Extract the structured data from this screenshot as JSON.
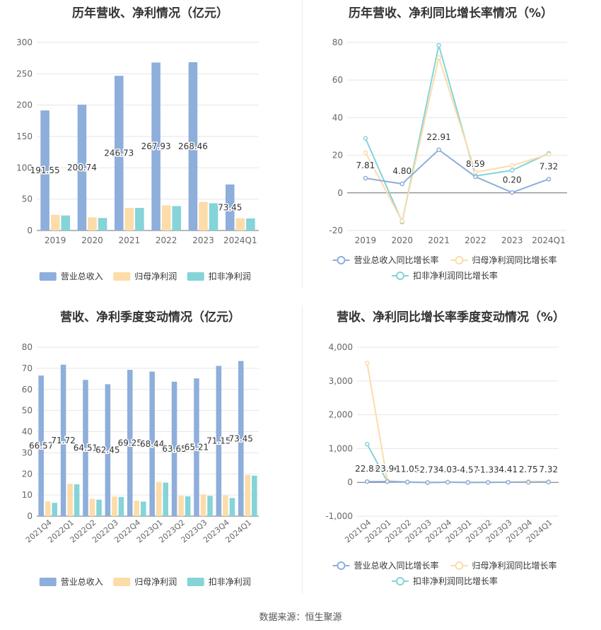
{
  "panels": [
    {
      "title": "历年营收、净利情况（亿元）",
      "chart_data": {
        "type": "bar",
        "categories": [
          "2019",
          "2020",
          "2021",
          "2022",
          "2023",
          "2024Q1"
        ],
        "series": [
          {
            "name": "营业总收入",
            "color": "#8eaedb",
            "values": [
              191.55,
              200.74,
              246.73,
              267.93,
              268.46,
              73.45
            ],
            "labels": [
              "191.55",
              "200.74",
              "246.73",
              "267.93",
              "268.46",
              "73.45"
            ]
          },
          {
            "name": "归母净利润",
            "color": "#fcdca8",
            "values": [
              25,
              21,
              36,
              40,
              45.5,
              19.5
            ]
          },
          {
            "name": "扣非净利润",
            "color": "#84d4d8",
            "values": [
              24,
              20,
              36,
              39,
              43.5,
              19.2
            ]
          }
        ],
        "ylim": [
          0,
          300
        ],
        "yticks": [
          0,
          50,
          100,
          150,
          200,
          250,
          300
        ]
      }
    },
    {
      "title": "历年营收、净利同比增长率情况（%）",
      "chart_data": {
        "type": "line",
        "categories": [
          "2019",
          "2020",
          "2021",
          "2022",
          "2023",
          "2024Q1"
        ],
        "series": [
          {
            "name": "营业总收入同比增长率",
            "color": "#8eaedb",
            "values": [
              7.81,
              4.8,
              22.91,
              8.59,
              0.2,
              7.32
            ],
            "labels": [
              "7.81",
              "4.80",
              "22.91",
              "8.59",
              "0.20",
              "7.32"
            ]
          },
          {
            "name": "归母净利润同比增长率",
            "color": "#fcdca8",
            "values": [
              21.5,
              -15,
              72,
              11,
              14.5,
              20.5
            ]
          },
          {
            "name": "扣非净利润同比增长率",
            "color": "#84d4d8",
            "values": [
              29,
              -15.5,
              78.5,
              9,
              12,
              21
            ]
          }
        ],
        "ylim": [
          -20,
          80
        ],
        "yticks": [
          -20,
          0,
          20,
          40,
          60,
          80
        ]
      }
    },
    {
      "title": "营收、净利季度变动情况（亿元）",
      "chart_data": {
        "type": "bar",
        "categories": [
          "2021Q4",
          "2022Q1",
          "2022Q2",
          "2022Q3",
          "2022Q4",
          "2023Q1",
          "2023Q2",
          "2023Q3",
          "2023Q4",
          "2024Q1"
        ],
        "series": [
          {
            "name": "营业总收入",
            "color": "#8eaedb",
            "values": [
              66.57,
              71.72,
              64.51,
              62.45,
              69.25,
              68.44,
              63.65,
              65.21,
              71.15,
              73.45
            ],
            "labels": [
              "66.57",
              "71.72",
              "64.51",
              "62.45",
              "69.25",
              "68.44",
              "63.65",
              "65.21",
              "71.15",
              "73.45"
            ]
          },
          {
            "name": "归母净利润",
            "color": "#fcdca8",
            "values": [
              7,
              15.3,
              8.2,
              9.3,
              7.3,
              16.2,
              9.6,
              10.3,
              9.8,
              19.5
            ]
          },
          {
            "name": "扣非净利润",
            "color": "#84d4d8",
            "values": [
              6.3,
              15.1,
              7.8,
              9.1,
              6.9,
              15.9,
              9.4,
              9.6,
              8.6,
              19.2
            ]
          }
        ],
        "ylim": [
          0,
          80
        ],
        "yticks": [
          0,
          10,
          20,
          30,
          40,
          50,
          60,
          70,
          80
        ]
      }
    },
    {
      "title": "营收、净利同比增长率季度变动情况（%）",
      "chart_data": {
        "type": "line",
        "categories": [
          "2021Q4",
          "2022Q1",
          "2022Q2",
          "2022Q3",
          "2022Q4",
          "2023Q1",
          "2023Q2",
          "2023Q3",
          "2023Q4",
          "2024Q1"
        ],
        "series": [
          {
            "name": "营业总收入同比增长率",
            "color": "#8eaedb",
            "values": [
              22.83,
              23.96,
              11.05,
              -2.73,
              4.03,
              -4.57,
              -1.33,
              4.41,
              2.75,
              7.32
            ],
            "labels": [
              "22.83",
              "23.96",
              "11.05",
              "-2.73",
              "4.03",
              "-4.57",
              "-1.33",
              "4.41",
              "2.75",
              "7.32"
            ]
          },
          {
            "name": "归母净利润同比增长率",
            "color": "#fcdca8",
            "values": [
              3530,
              50,
              5,
              -10,
              10,
              5,
              10,
              8,
              30,
              25
            ]
          },
          {
            "name": "扣非净利润同比增长率",
            "color": "#84d4d8",
            "values": [
              1130,
              25,
              0,
              -5,
              5,
              5,
              5,
              5,
              10,
              10
            ]
          }
        ],
        "ylim": [
          -1000,
          4000
        ],
        "yticks": [
          -1000,
          0,
          1000,
          2000,
          3000,
          4000
        ],
        "ytick_labels": [
          "-1,000",
          "0",
          "1,000",
          "2,000",
          "3,000",
          "4,000"
        ]
      }
    }
  ],
  "source": "数据来源：恒生聚源"
}
